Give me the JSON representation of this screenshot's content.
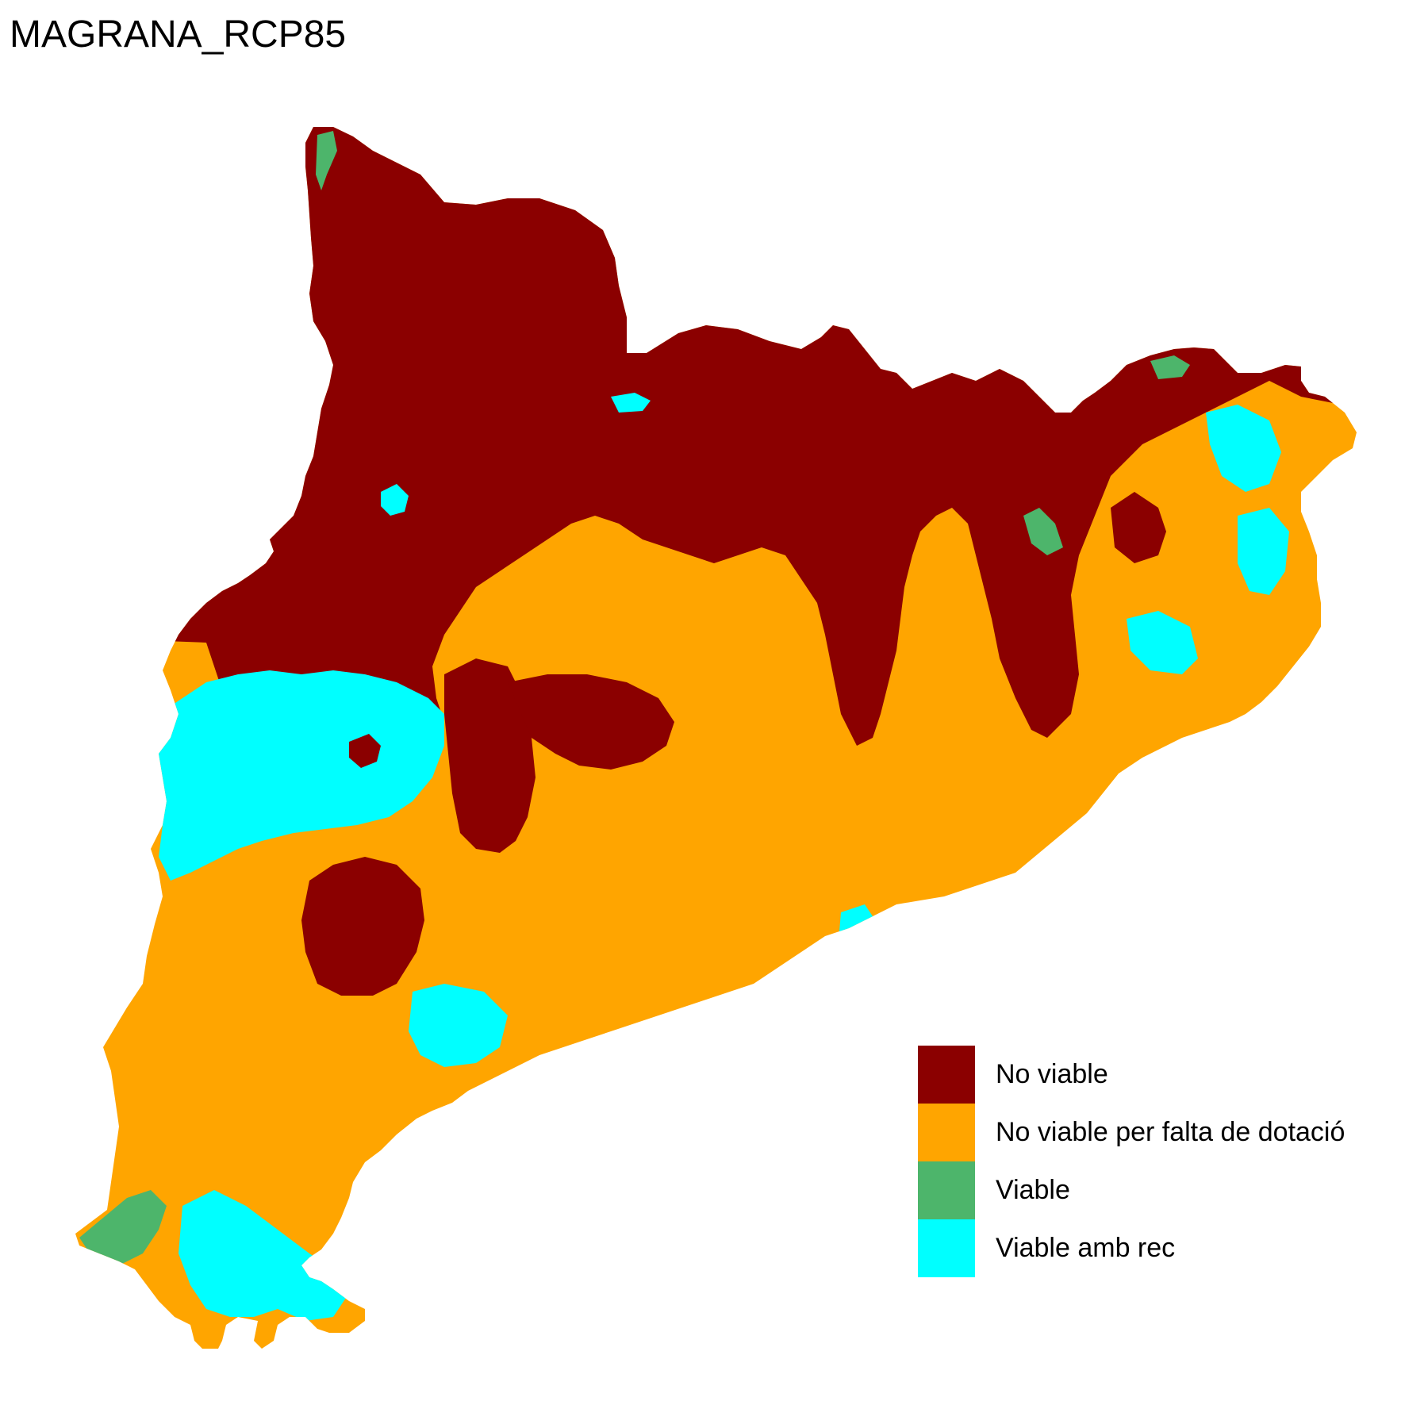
{
  "title": "MAGRANA_RCP85",
  "legend": {
    "items": [
      {
        "label": "No viable",
        "color": "#8B0000"
      },
      {
        "label": "No viable per falta de dotació",
        "color": "#FFA500"
      },
      {
        "label": "Viable",
        "color": "#4DB56B"
      },
      {
        "label": "Viable amb rec",
        "color": "#00FFFF"
      }
    ]
  }
}
